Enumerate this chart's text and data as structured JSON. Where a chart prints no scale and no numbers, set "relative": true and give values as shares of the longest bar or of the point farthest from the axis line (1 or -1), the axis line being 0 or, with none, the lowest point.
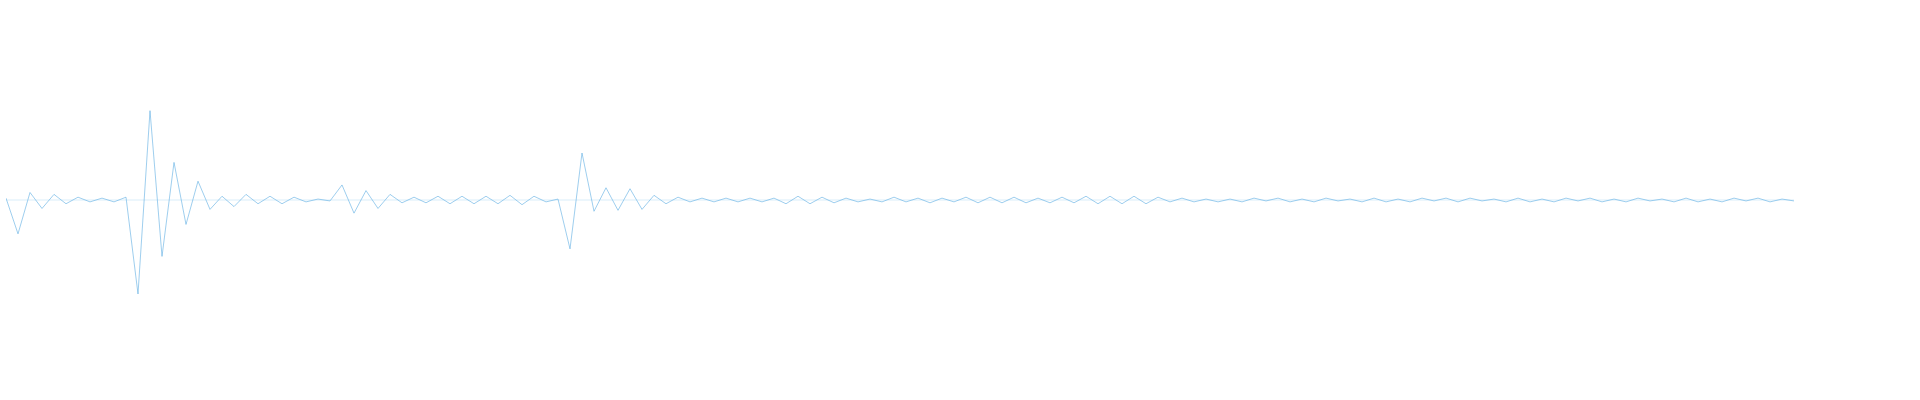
{
  "chart_data": {
    "type": "line",
    "relative": true,
    "color": "#5dade2",
    "ref_lines": [
      {
        "axis": "y",
        "value": 0,
        "color": "#9eceee"
      }
    ],
    "categories": [
      null,
      null,
      null,
      null,
      null,
      null,
      null,
      null,
      null,
      null,
      null,
      null,
      null,
      null,
      null,
      null,
      null,
      null,
      null,
      null,
      null,
      null,
      null,
      null,
      null,
      null,
      null,
      null,
      null,
      null,
      null,
      null,
      null,
      null,
      null,
      null,
      null,
      null,
      null,
      null,
      null,
      null,
      null,
      null,
      null,
      null,
      null,
      null,
      null,
      null,
      null,
      null,
      null,
      null,
      null,
      null,
      null,
      null,
      null,
      null,
      null,
      null,
      null,
      null,
      null,
      null,
      null,
      null,
      null,
      null,
      null,
      null,
      null,
      null,
      null,
      null,
      null,
      null,
      null,
      null,
      null,
      null,
      null,
      null,
      null,
      null,
      null,
      null,
      null,
      null,
      null,
      null,
      null,
      null,
      null,
      null,
      null,
      null,
      null,
      null,
      null,
      null,
      null,
      null,
      null,
      null,
      null,
      null,
      null,
      null,
      null,
      null,
      null,
      null,
      null,
      null,
      null,
      null,
      null,
      null,
      null,
      null,
      null,
      null,
      null,
      null,
      null,
      null,
      null,
      null,
      null,
      null,
      null,
      null,
      null,
      null,
      null,
      null,
      null,
      null,
      null,
      null,
      null,
      null,
      null,
      null,
      null,
      null,
      null,
      null
    ],
    "values": [
      0.02,
      -0.36,
      0.08,
      -0.09,
      0.06,
      -0.04,
      0.03,
      -0.02,
      0.02,
      -0.02,
      0.03,
      -1,
      0.95,
      -0.6,
      0.4,
      -0.26,
      0.2,
      -0.1,
      0.04,
      -0.07,
      0.06,
      -0.04,
      0.04,
      -0.04,
      0.03,
      -0.02,
      0.01,
      -0.01,
      0.16,
      -0.14,
      0.1,
      -0.09,
      0.06,
      -0.03,
      0.03,
      -0.03,
      0.04,
      -0.04,
      0.04,
      -0.04,
      0.04,
      -0.04,
      0.05,
      -0.05,
      0.04,
      -0.02,
      0.01,
      -0.52,
      0.5,
      -0.12,
      0.13,
      -0.11,
      0.12,
      -0.1,
      0.05,
      -0.04,
      0.03,
      -0.02,
      0.02,
      -0.02,
      0.02,
      -0.02,
      0.02,
      -0.02,
      0.02,
      -0.04,
      0.04,
      -0.04,
      0.03,
      -0.03,
      0.02,
      -0.02,
      0.01,
      -0.02,
      0.03,
      -0.02,
      0.02,
      -0.03,
      0.02,
      -0.02,
      0.03,
      -0.03,
      0.03,
      -0.03,
      0.03,
      -0.03,
      0.02,
      -0.03,
      0.03,
      -0.03,
      0.04,
      -0.04,
      0.04,
      -0.04,
      0.04,
      -0.04,
      0.03,
      -0.02,
      0.02,
      -0.02,
      0.01,
      -0.02,
      0.01,
      -0.02,
      0.02,
      -0.01,
      0.02,
      -0.02,
      0.01,
      -0.02,
      0.02,
      -0.01,
      0.01,
      -0.02,
      0.02,
      -0.02,
      0.01,
      -0.02,
      0.02,
      -0.01,
      0.02,
      -0.02,
      0.02,
      -0.01,
      0.01,
      -0.02,
      0.02,
      -0.02,
      0.01,
      -0.02,
      0.02,
      -0.01,
      0.02,
      -0.02,
      0.01,
      -0.02,
      0.02,
      -0.01,
      0.01,
      -0.02,
      0.02,
      -0.02,
      0.01,
      -0.02,
      0.02,
      -0.01,
      0.02,
      -0.02,
      0.01,
      -0.01
    ]
  }
}
